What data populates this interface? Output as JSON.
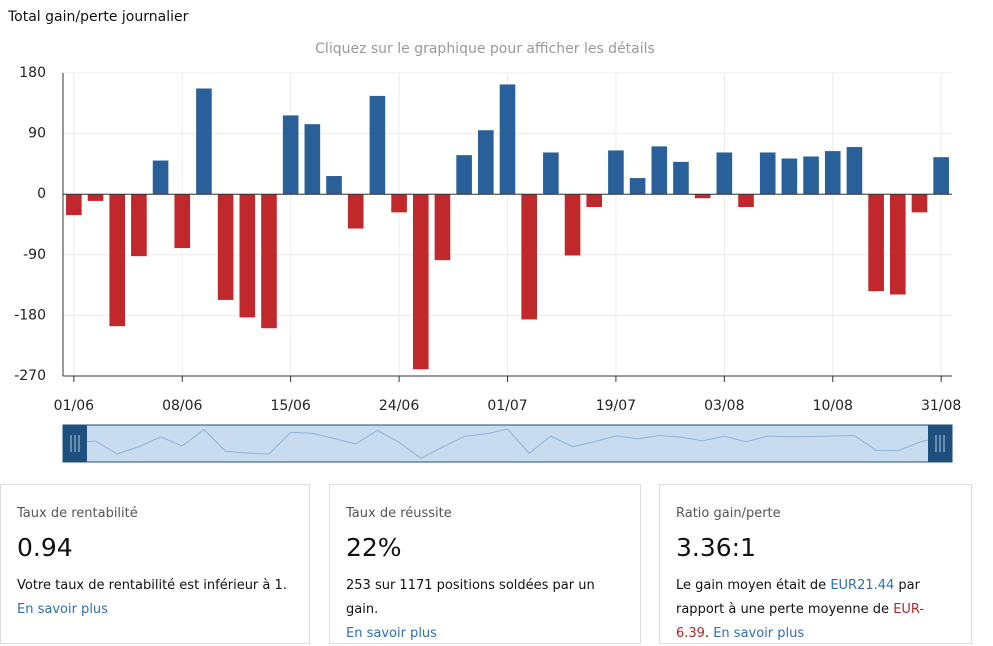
{
  "header": {
    "title": "Total gain/perte journalier"
  },
  "chart_data": {
    "type": "bar",
    "subtitle": "Cliquez sur le graphique pour afficher les détails",
    "categories": [
      "01/06",
      null,
      null,
      null,
      null,
      "08/06",
      null,
      null,
      null,
      null,
      "15/06",
      null,
      null,
      null,
      null,
      "24/06",
      null,
      null,
      null,
      null,
      "01/07",
      null,
      null,
      null,
      null,
      "19/07",
      null,
      null,
      null,
      null,
      "03/08",
      null,
      null,
      null,
      null,
      "10/08",
      null,
      null,
      null,
      null,
      "31/08"
    ],
    "values": [
      -31,
      -10,
      -196,
      -92,
      50,
      -80,
      157,
      -157,
      -183,
      -199,
      117,
      104,
      27,
      -51,
      146,
      -27,
      -260,
      -98,
      58,
      95,
      163,
      -186,
      62,
      -91,
      -19,
      65,
      24,
      71,
      48,
      -6,
      62,
      -19,
      62,
      53,
      56,
      64,
      70,
      -144,
      -149,
      -27,
      55
    ],
    "positive_color": "#2a6099",
    "negative_color": "#c0282b",
    "ylim": [
      -270,
      180
    ],
    "yticks": [
      180,
      90,
      0,
      -90,
      -180,
      -270
    ],
    "grid": true
  },
  "cards": [
    {
      "label": "Taux de rentabilité",
      "value": "0.94",
      "description": [
        "Votre taux de rentabilité est inférieur à 1."
      ],
      "link": "En savoir plus"
    },
    {
      "label": "Taux de réussite",
      "value": "22%",
      "description": [
        "253 sur 1171 positions soldées par un gain."
      ],
      "link": "En savoir plus"
    },
    {
      "label": "Ratio gain/perte",
      "value": "3.36:1",
      "description": [
        "Le gain moyen était de ",
        "EUR21.44",
        " par rapport à une perte moyenne de ",
        "EUR-6.39",
        ". "
      ],
      "link": "En savoir plus"
    }
  ]
}
